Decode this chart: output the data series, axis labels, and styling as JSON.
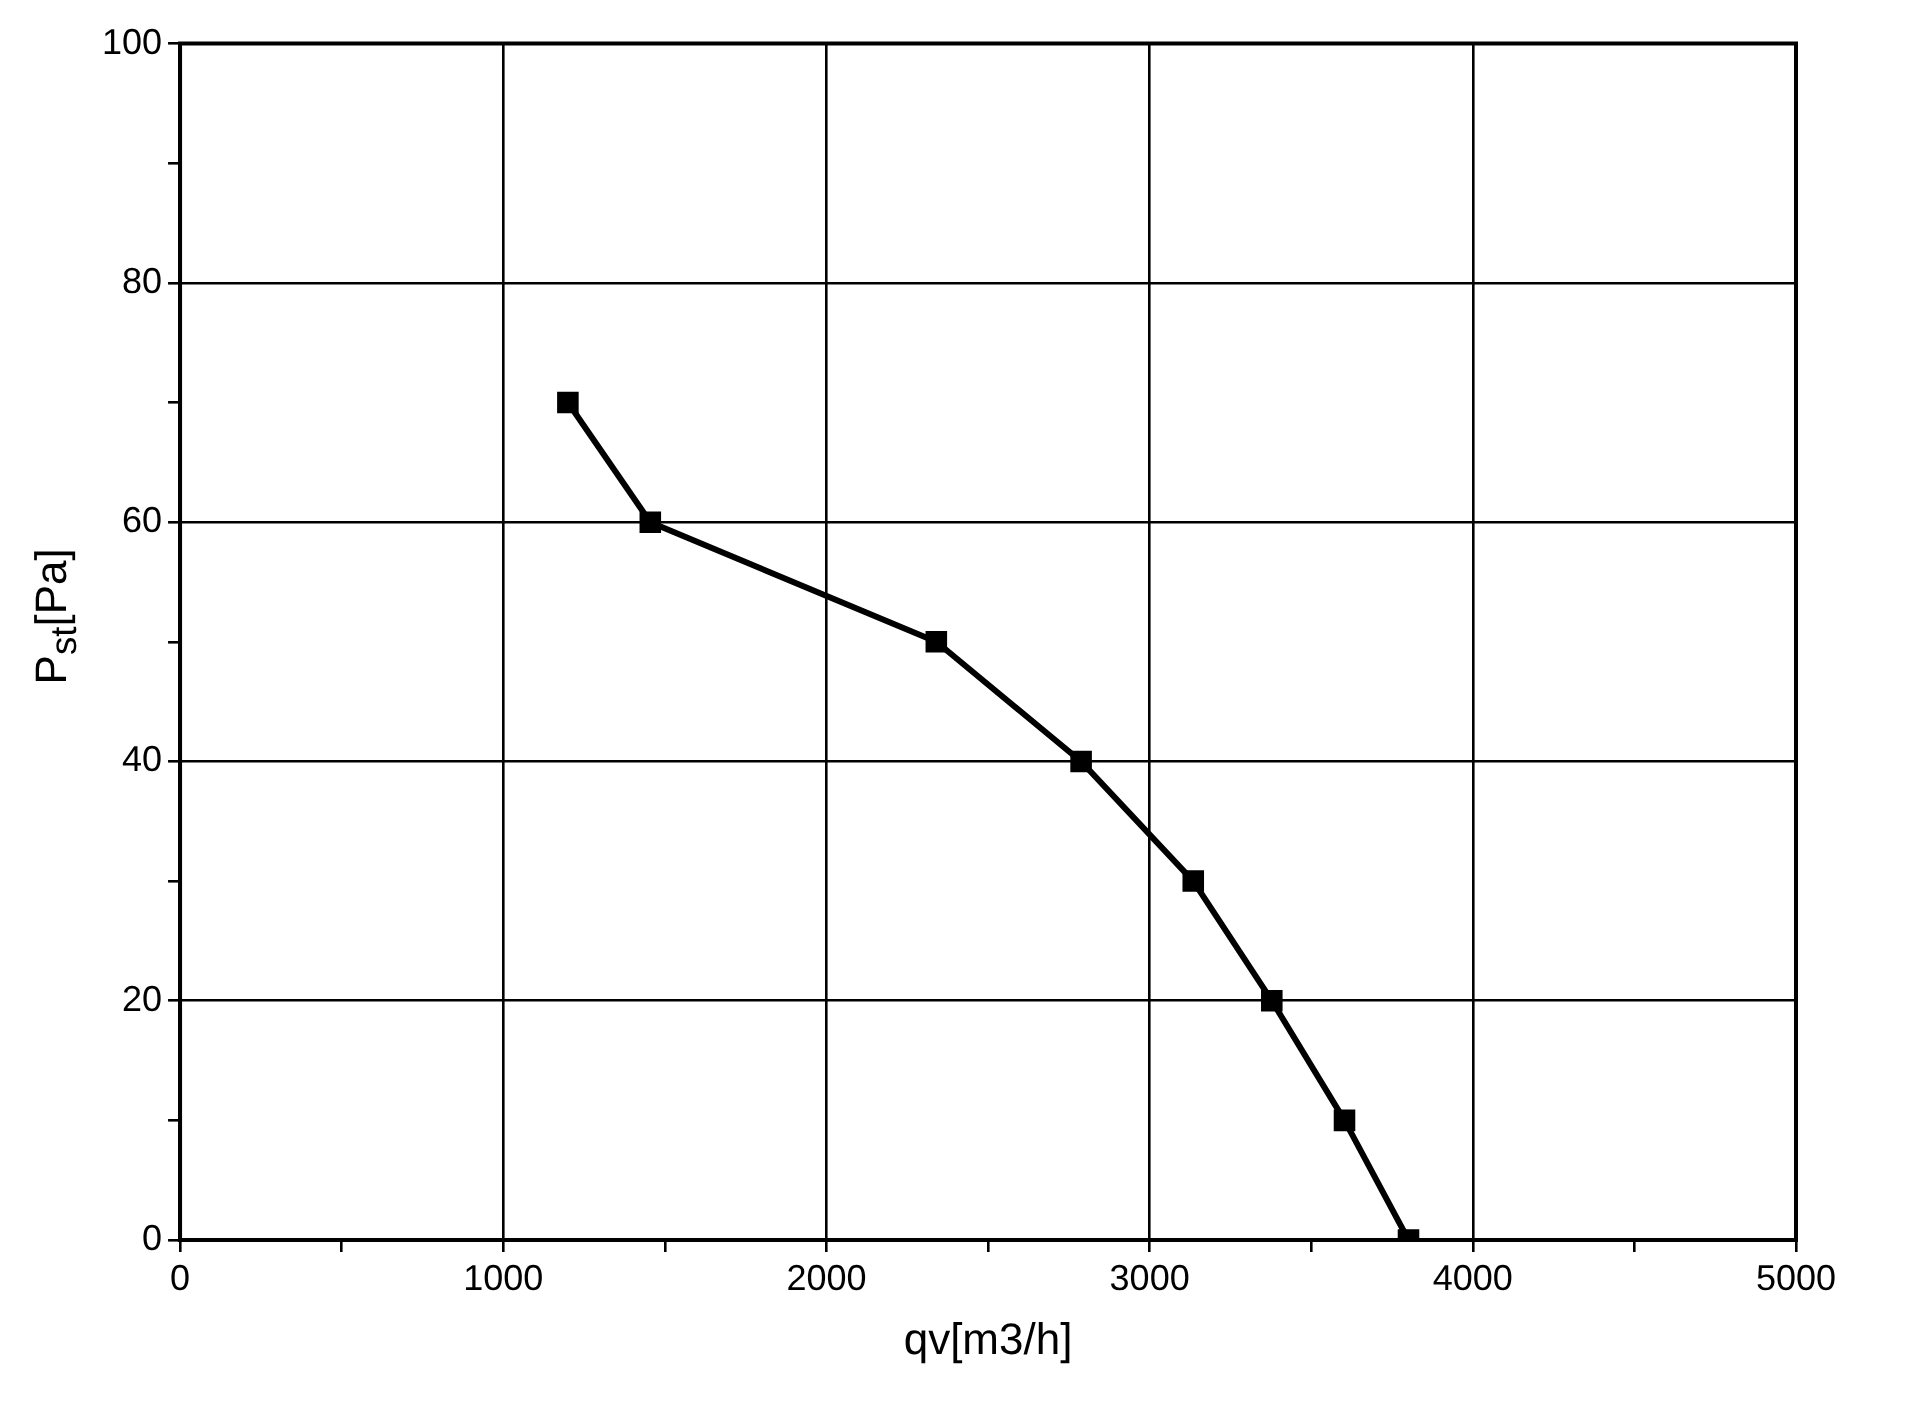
{
  "chart_data": {
    "type": "line",
    "xlabel": "qv[m3/h]",
    "ylabel": "P$_{st}$[Pa]",
    "series": [
      {
        "color": "#000000",
        "x": [
          1200,
          1455,
          2340,
          2788,
          3135,
          3378,
          3603,
          3801
        ],
        "values": [
          70,
          60,
          50,
          40,
          30,
          20,
          10,
          0
        ]
      }
    ],
    "xlim": [
      0,
      5000
    ],
    "xticks": [
      0,
      {
        "value": 500,
        "label": null
      },
      1000,
      {
        "value": 1500,
        "label": null
      },
      2000,
      {
        "value": 2500,
        "label": null
      },
      3000,
      {
        "value": 3500,
        "label": null
      },
      4000,
      {
        "value": 4500,
        "label": null
      },
      5000
    ],
    "ylim": [
      0,
      100
    ],
    "yticks": [
      0,
      {
        "value": 10,
        "label": null
      },
      20,
      {
        "value": 30,
        "label": null
      },
      40,
      {
        "value": 50,
        "label": null
      },
      60,
      {
        "value": 70,
        "label": null
      },
      80,
      {
        "value": 90,
        "label": null
      },
      100
    ],
    "grid": true,
    "marker": "square",
    "line_style": "solid"
  }
}
